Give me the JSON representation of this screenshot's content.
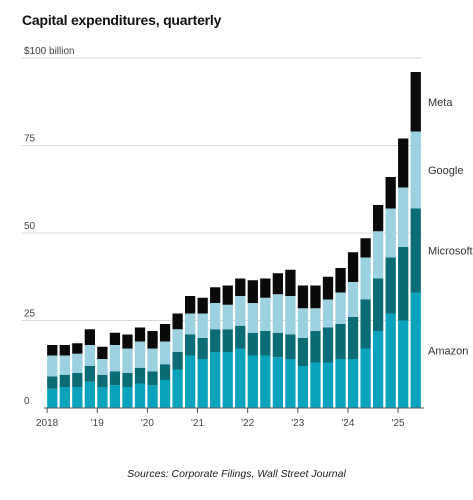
{
  "chart_data": {
    "type": "bar",
    "stacked": true,
    "title": "Capital expenditures, quarterly",
    "source": "Sources: Corporate Filings, Wall Street Journal",
    "y_unit_label": "$100 billion",
    "ylim": [
      0,
      100
    ],
    "y_ticks": [
      {
        "value": 0,
        "label": "0"
      },
      {
        "value": 25,
        "label": "25"
      },
      {
        "value": 50,
        "label": "50"
      },
      {
        "value": 75,
        "label": "75"
      },
      {
        "value": 100,
        "label": "$100 billion"
      }
    ],
    "grid": true,
    "legend_placement": "right, inline labels",
    "x_ticks": [
      {
        "index": 0,
        "label": "2018"
      },
      {
        "index": 4,
        "label": "'19"
      },
      {
        "index": 8,
        "label": "'20"
      },
      {
        "index": 12,
        "label": "'21"
      },
      {
        "index": 16,
        "label": "'22"
      },
      {
        "index": 20,
        "label": "'23"
      },
      {
        "index": 24,
        "label": "'24"
      },
      {
        "index": 28,
        "label": "'25"
      }
    ],
    "categories": [
      "Q1 2018",
      "Q2 2018",
      "Q3 2018",
      "Q4 2018",
      "Q1 2019",
      "Q2 2019",
      "Q3 2019",
      "Q4 2019",
      "Q1 2020",
      "Q2 2020",
      "Q3 2020",
      "Q4 2020",
      "Q1 2021",
      "Q2 2021",
      "Q3 2021",
      "Q4 2021",
      "Q1 2022",
      "Q2 2022",
      "Q3 2022",
      "Q4 2022",
      "Q1 2023",
      "Q2 2023",
      "Q3 2023",
      "Q4 2023",
      "Q1 2024",
      "Q2 2024",
      "Q3 2024",
      "Q4 2024",
      "Q1 2025",
      "Q2 2025"
    ],
    "series": [
      {
        "name": "Amazon",
        "color": "#0aa3bd",
        "values": [
          5.5,
          6,
          6,
          7.5,
          6,
          6.5,
          6,
          7,
          6.5,
          8,
          11,
          15,
          14,
          16,
          16,
          17,
          15,
          15,
          14.5,
          14,
          12,
          13,
          13,
          14,
          14,
          17,
          22,
          27,
          25,
          33
        ]
      },
      {
        "name": "Microsoft",
        "color": "#0c6c76",
        "values": [
          3.5,
          3.5,
          4,
          4.5,
          3.5,
          4,
          4,
          4.5,
          4,
          4.5,
          5,
          6,
          6,
          6.5,
          6.5,
          6.5,
          6.5,
          7,
          7,
          7,
          8,
          9,
          10,
          10,
          12,
          14,
          15,
          16,
          21,
          24
        ]
      },
      {
        "name": "Google",
        "color": "#9bd1e0",
        "values": [
          6,
          5.5,
          5.5,
          6,
          4.5,
          7.5,
          7,
          7.5,
          6.5,
          6.5,
          6.5,
          6,
          7,
          7.5,
          7,
          8.5,
          8.5,
          9.5,
          11,
          11,
          8.5,
          6.5,
          8,
          9,
          10,
          12,
          13.5,
          14,
          17,
          22
        ]
      },
      {
        "name": "Meta",
        "color": "#0a0a0a",
        "values": [
          3,
          3,
          3,
          4.5,
          3.5,
          3.5,
          4,
          4,
          5,
          5,
          4.5,
          5,
          4.5,
          4.5,
          5.5,
          5,
          6.5,
          5.5,
          6,
          7.5,
          6.5,
          6.5,
          6.5,
          7,
          8.5,
          5.5,
          7.5,
          9,
          14,
          17
        ]
      }
    ]
  }
}
